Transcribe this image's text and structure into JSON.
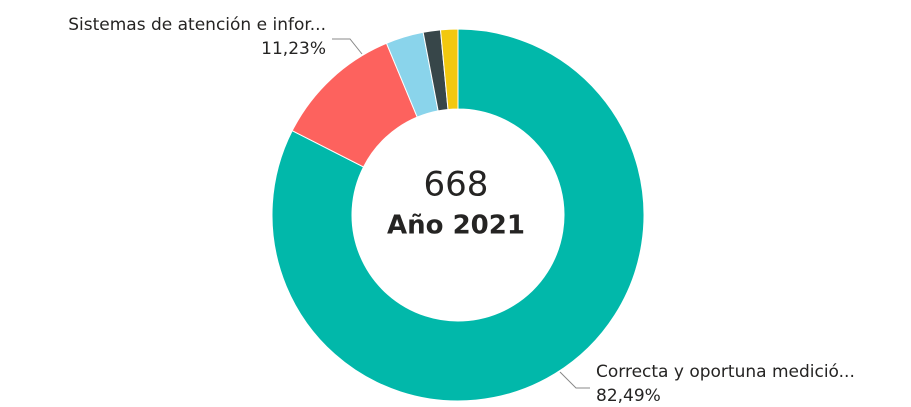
{
  "chart_data": {
    "type": "donut",
    "categories": [
      "Correcta y oportuna medició...",
      "Sistemas de atención e infor...",
      null,
      null,
      null
    ],
    "values": [
      82.49,
      11.23,
      3.28,
      1.5,
      1.5
    ],
    "value_labels": [
      "82,49%",
      "11,23%",
      null,
      null,
      null
    ],
    "colors": [
      "#01B8AA",
      "#FD625E",
      "#8AD4EB",
      "#374649",
      "#F2C80F"
    ],
    "center_value": 668,
    "center_label": "Año 2021"
  }
}
